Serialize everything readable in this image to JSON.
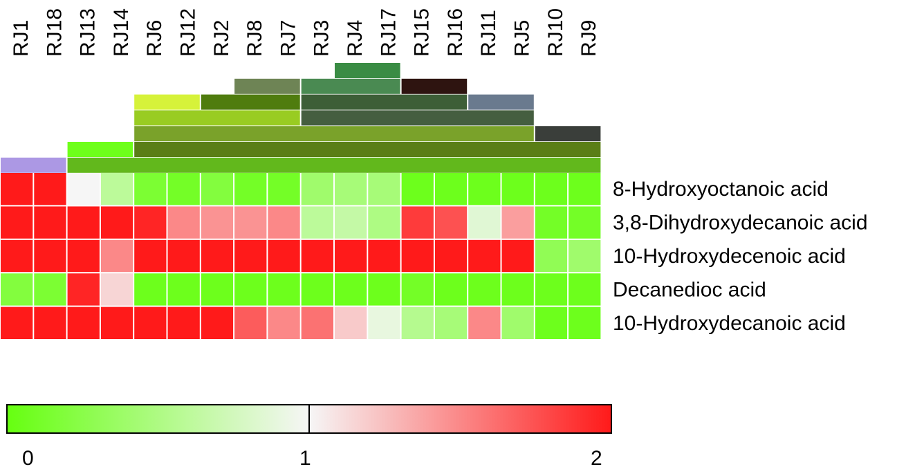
{
  "chart_data": {
    "type": "heatmap",
    "columns": [
      "RJ1",
      "RJ18",
      "RJ13",
      "RJ14",
      "RJ6",
      "RJ12",
      "RJ2",
      "RJ8",
      "RJ7",
      "RJ3",
      "RJ4",
      "RJ17",
      "RJ15",
      "RJ16",
      "RJ11",
      "RJ5",
      "RJ10",
      "RJ9"
    ],
    "rows": [
      "8-Hydroxyoctanoic acid",
      "3,8-Dihydroxydecanoic acid",
      "10-Hydroxydecenoic acid",
      "Decanedioc acid",
      "10-Hydroxydecanoic acid"
    ],
    "values": [
      [
        2.0,
        2.0,
        1.0,
        0.6,
        0.15,
        0.1,
        0.2,
        0.1,
        0.1,
        0.4,
        0.45,
        0.45,
        0.05,
        0.05,
        0.05,
        0.05,
        0.05,
        0.05
      ],
      [
        2.0,
        2.0,
        2.0,
        2.0,
        1.95,
        1.5,
        1.45,
        1.45,
        1.5,
        0.6,
        0.65,
        0.5,
        1.85,
        1.75,
        0.85,
        1.4,
        0.1,
        0.1
      ],
      [
        2.0,
        2.0,
        2.0,
        1.5,
        2.0,
        2.0,
        2.0,
        2.0,
        2.0,
        2.0,
        2.0,
        2.0,
        2.0,
        2.0,
        2.0,
        2.0,
        0.3,
        0.4
      ],
      [
        0.2,
        0.15,
        1.95,
        1.15,
        0.05,
        0.05,
        0.05,
        0.05,
        0.05,
        0.05,
        0.05,
        0.05,
        0.1,
        0.05,
        0.05,
        0.05,
        0.05,
        0.05
      ],
      [
        2.0,
        2.0,
        2.0,
        2.0,
        2.0,
        2.0,
        2.0,
        1.7,
        1.5,
        1.6,
        1.2,
        0.9,
        0.55,
        0.45,
        1.5,
        0.4,
        0.05,
        0.05
      ]
    ],
    "color_scale": {
      "min": 0,
      "mid": 1,
      "max": 2,
      "min_color": "#66ff10",
      "mid_color": "#f6f6f6",
      "max_color": "#ff1a1a",
      "tick_labels": [
        "0",
        "1",
        "2"
      ]
    },
    "clusters": [
      {
        "start": 10,
        "end": 11,
        "level": 0,
        "color": "#3a8c44"
      },
      {
        "start": 7,
        "end": 8,
        "level": 1,
        "color": "#6e8455"
      },
      {
        "start": 9,
        "end": 11,
        "level": 1,
        "color": "#4a8a52"
      },
      {
        "start": 12,
        "end": 13,
        "level": 1,
        "color": "#2e1410"
      },
      {
        "start": 4,
        "end": 5,
        "level": 2,
        "color": "#d6f23a"
      },
      {
        "start": 6,
        "end": 8,
        "level": 2,
        "color": "#4f7c0e"
      },
      {
        "start": 9,
        "end": 13,
        "level": 2,
        "color": "#3d5e37"
      },
      {
        "start": 14,
        "end": 15,
        "level": 2,
        "color": "#6a7a8e"
      },
      {
        "start": 4,
        "end": 8,
        "level": 3,
        "color": "#99cc22"
      },
      {
        "start": 9,
        "end": 15,
        "level": 3,
        "color": "#455e40"
      },
      {
        "start": 4,
        "end": 15,
        "level": 4,
        "color": "#7aa22a"
      },
      {
        "start": 16,
        "end": 17,
        "level": 4,
        "color": "#3a3e3a"
      },
      {
        "start": 2,
        "end": 3,
        "level": 5,
        "color": "#6eff1a"
      },
      {
        "start": 4,
        "end": 17,
        "level": 5,
        "color": "#5a7e16"
      },
      {
        "start": 0,
        "end": 1,
        "level": 6,
        "color": "#ac98e4"
      },
      {
        "start": 2,
        "end": 17,
        "level": 6,
        "color": "#62b81c"
      }
    ]
  }
}
